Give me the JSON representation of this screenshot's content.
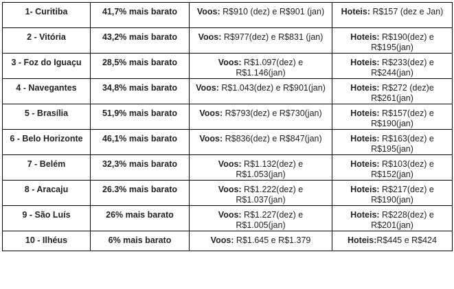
{
  "rows": [
    {
      "city": "1- Curitiba",
      "discount": "41,7% mais barato",
      "flights_label": "Voos:",
      "flights": " R$910 (dez) e R$901 (jan)",
      "hotels_label": "Hoteis:",
      "hotels": " R$157 (dez e Jan)"
    },
    {
      "city": "2 - Vitória",
      "discount": "43,2% mais barato",
      "flights_label": "Voos:",
      "flights": " R$977(dez) e R$831 (jan)",
      "hotels_label": "Hoteis:",
      "hotels": " R$190(dez) e R$195(jan)"
    },
    {
      "city": "3 - Foz do Iguaçu",
      "discount": "28,5% mais barato",
      "flights_label": "Voos:",
      "flights": " R$1.097(dez) e R$1.146(jan)",
      "hotels_label": "Hoteis:",
      "hotels": " R$233(dez) e R$244(jan)"
    },
    {
      "city": "4 - Navegantes",
      "discount": "34,8% mais barato",
      "flights_label": "Voos:",
      "flights": " R$1.043(dez) e R$901(jan)",
      "hotels_label": "Hoteis:",
      "hotels": " R$272 (dez)e R$261(jan)"
    },
    {
      "city": "5 - Brasília",
      "discount": "51,9% mais barato",
      "flights_label": "Voos:",
      "flights": " R$793(dez) e R$730(jan)",
      "hotels_label": "Hoteis:",
      "hotels": " R$157(dez) e R$190(jan)"
    },
    {
      "city": "6 - Belo Horizonte",
      "discount": "46,1% mais barato",
      "flights_label": "Voos:",
      "flights": " R$836(dez) e R$847(jan)",
      "hotels_label": "Hoteis:",
      "hotels": " R$163(dez) e R$195(jan)"
    },
    {
      "city": "7 - Belém",
      "discount": "32,3% mais barato",
      "flights_label": "Voos:",
      "flights": " R$1.132(dez) e R$1.053(jan)",
      "hotels_label": "Hoteis:",
      "hotels": " R$103(dez) e R$152(jan)"
    },
    {
      "city": "8 - Aracaju",
      "discount": "26.3% mais barato",
      "flights_label": "Voos:",
      "flights": " R$1.222(dez) e R$1.037(jan)",
      "hotels_label": "Hoteis:",
      "hotels": " R$217(dez) e R$190(jan)"
    },
    {
      "city": "9 - São Luís",
      "discount": "26% mais barato",
      "flights_label": "Voos:",
      "flights": " R$1.227(dez) e R$1.005(jan)",
      "hotels_label": "Hoteis:",
      "hotels": " R$228(dez) e R$201(jan)"
    },
    {
      "city": "10 - Ilhéus",
      "discount": "6% mais barato",
      "flights_label": "Voos:",
      "flights": " R$1.645 e R$1.379",
      "hotels_label": "Hoteis:",
      "hotels": "R$445 e R$424"
    }
  ]
}
